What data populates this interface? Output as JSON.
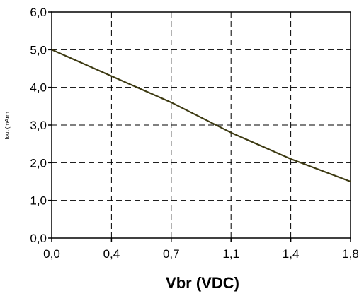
{
  "chart_data": {
    "type": "line",
    "xlabel": "Vbr (VDC)",
    "ylabel": "Iout (mArm",
    "x_ticks": [
      "0,0",
      "0,4",
      "0,7",
      "1,1",
      "1,4",
      "1,8"
    ],
    "y_ticks": [
      "0,0",
      "1,0",
      "2,0",
      "3,0",
      "4,0",
      "5,0",
      "6,0"
    ],
    "xlim": [
      0,
      1.8
    ],
    "ylim": [
      0,
      6
    ],
    "grid": true,
    "legend": "none",
    "line_color": "#3d3a12",
    "series": [
      {
        "x": [
          0.0,
          0.36,
          0.72,
          1.08,
          1.44,
          1.8
        ],
        "y": [
          5.0,
          4.3,
          3.6,
          2.8,
          2.1,
          1.5
        ]
      }
    ]
  }
}
